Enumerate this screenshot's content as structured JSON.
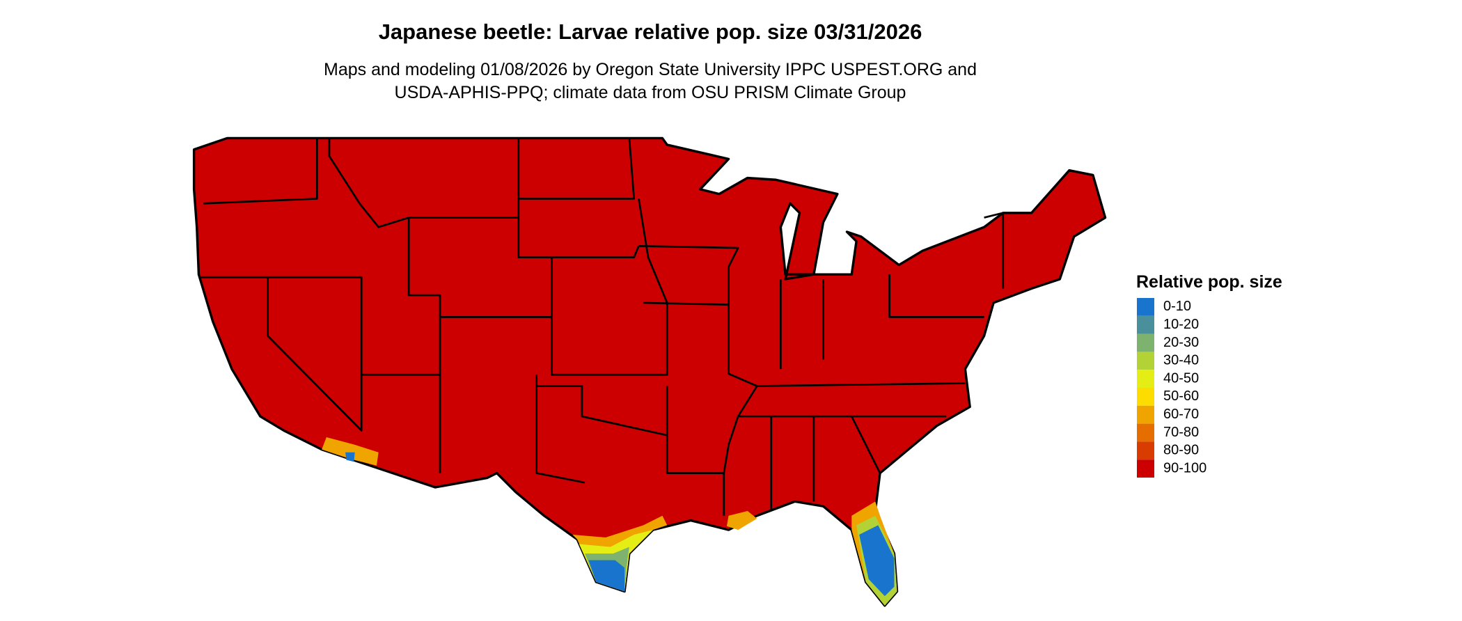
{
  "title": "Japanese beetle: Larvae relative pop. size 03/31/2026",
  "subtitle": [
    "Maps and modeling 01/08/2026 by Oregon State University IPPC USPEST.ORG and",
    "USDA-APHIS-PPQ; climate data from OSU PRISM Climate Group"
  ],
  "legend": {
    "title": "Relative pop. size",
    "items": [
      {
        "label": "0-10",
        "color": "#1874cd"
      },
      {
        "label": "10-20",
        "color": "#4a8f9c"
      },
      {
        "label": "20-30",
        "color": "#7db36e"
      },
      {
        "label": "30-40",
        "color": "#b2d235"
      },
      {
        "label": "40-50",
        "color": "#e5ee14"
      },
      {
        "label": "50-60",
        "color": "#fddc00"
      },
      {
        "label": "60-70",
        "color": "#f0a400"
      },
      {
        "label": "70-80",
        "color": "#e66e00"
      },
      {
        "label": "80-90",
        "color": "#d83c00"
      },
      {
        "label": "90-100",
        "color": "#cc0000"
      }
    ]
  }
}
